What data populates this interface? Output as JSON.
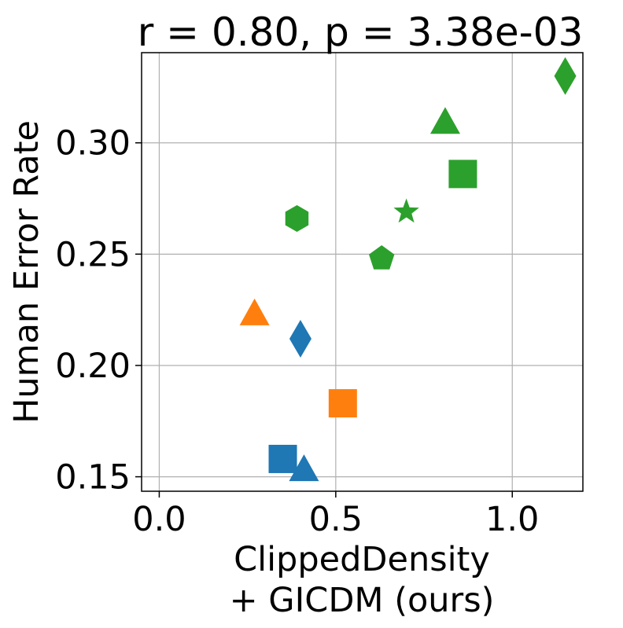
{
  "chart_data": {
    "type": "scatter",
    "title": "r = 0.80, p = 3.38e-03",
    "xlabel_lines": [
      "ClippedDensity",
      "+ GICDM (ours)"
    ],
    "ylabel": "Human Error Rate",
    "xlim": [
      -0.05,
      1.2
    ],
    "ylim": [
      0.1435,
      0.3405
    ],
    "x_ticks": [
      0.0,
      0.5,
      1.0
    ],
    "x_tick_labels": [
      "0.0",
      "0.5",
      "1.0"
    ],
    "y_ticks": [
      0.15,
      0.2,
      0.25,
      0.3
    ],
    "y_tick_labels": [
      "0.15",
      "0.20",
      "0.25",
      "0.30"
    ],
    "grid": true,
    "colors": {
      "blue": "#1f77b4",
      "orange": "#ff7f0e",
      "green": "#2ca02c"
    },
    "points": [
      {
        "x": 0.35,
        "y": 0.158,
        "marker": "square",
        "color": "blue"
      },
      {
        "x": 0.41,
        "y": 0.153,
        "marker": "triangle",
        "color": "blue"
      },
      {
        "x": 0.4,
        "y": 0.212,
        "marker": "diamond",
        "color": "blue"
      },
      {
        "x": 0.52,
        "y": 0.183,
        "marker": "square",
        "color": "orange"
      },
      {
        "x": 0.27,
        "y": 0.223,
        "marker": "triangle",
        "color": "orange"
      },
      {
        "x": 0.39,
        "y": 0.266,
        "marker": "hexagon",
        "color": "green"
      },
      {
        "x": 0.63,
        "y": 0.248,
        "marker": "pentagon",
        "color": "green"
      },
      {
        "x": 0.7,
        "y": 0.269,
        "marker": "star",
        "color": "green"
      },
      {
        "x": 0.86,
        "y": 0.286,
        "marker": "square",
        "color": "green"
      },
      {
        "x": 0.81,
        "y": 0.309,
        "marker": "triangle",
        "color": "green"
      },
      {
        "x": 1.15,
        "y": 0.33,
        "marker": "diamond",
        "color": "green"
      }
    ]
  }
}
